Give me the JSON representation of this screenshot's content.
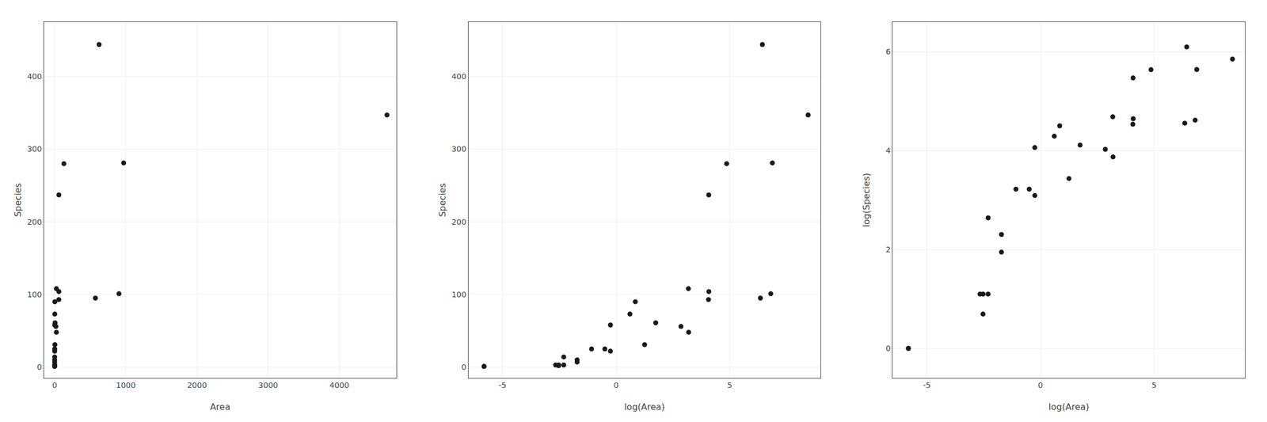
{
  "chart_data": [
    {
      "type": "scatter",
      "xlabel": "Area",
      "ylabel": "Species",
      "color": "#1a1a1a",
      "grid": true,
      "x": [
        58.27,
        0.78,
        2.33,
        0.18,
        1.84,
        0.78,
        3.51,
        0.08,
        0.1,
        0.34,
        0.08,
        0.07,
        0.003,
        0.003,
        17.35,
        0.18,
        0.1,
        0.61,
        5.72,
        572.33,
        24.08,
        4669.32,
        129.49,
        58.93,
        903.82,
        24.35,
        59.23,
        969.12,
        624.08
      ],
      "values": [
        93,
        58,
        90,
        10,
        73,
        22,
        31,
        2,
        3,
        25,
        3,
        3,
        1,
        1,
        56,
        7,
        14,
        25,
        61,
        95,
        108,
        347,
        280,
        237,
        101,
        48,
        104,
        281,
        444
      ],
      "xlim": [
        -150,
        4800
      ],
      "ylim": [
        -15,
        475
      ],
      "xticks": [
        0,
        1000,
        2000,
        3000,
        4000
      ],
      "yticks": [
        0,
        100,
        200,
        300,
        400
      ]
    },
    {
      "type": "scatter",
      "xlabel": "log(Area)",
      "ylabel": "Species",
      "color": "#1a1a1a",
      "grid": true,
      "x": [
        4.0651,
        -0.2485,
        0.8459,
        -1.7148,
        0.6098,
        -0.2485,
        1.2556,
        -2.5257,
        -2.3026,
        -1.0788,
        -2.5257,
        -2.6593,
        -5.8091,
        -5.8091,
        2.8536,
        -1.7148,
        -2.3026,
        -0.4943,
        1.744,
        6.3497,
        3.1814,
        8.4488,
        4.8636,
        4.0764,
        6.8066,
        3.1925,
        4.0814,
        6.8764,
        6.4363
      ],
      "values": [
        93,
        58,
        90,
        10,
        73,
        22,
        31,
        2,
        3,
        25,
        3,
        3,
        1,
        1,
        56,
        7,
        14,
        25,
        61,
        95,
        108,
        347,
        280,
        237,
        101,
        48,
        104,
        281,
        444
      ],
      "xlim": [
        -6.5,
        9.0
      ],
      "ylim": [
        -15,
        475
      ],
      "xticks": [
        -5,
        0,
        5
      ],
      "yticks": [
        0,
        100,
        200,
        300,
        400
      ]
    },
    {
      "type": "scatter",
      "xlabel": "log(Area)",
      "ylabel": "log(Species)",
      "color": "#1a1a1a",
      "grid": true,
      "x": [
        4.0651,
        -0.2485,
        0.8459,
        -1.7148,
        0.6098,
        -0.2485,
        1.2556,
        -2.5257,
        -2.3026,
        -1.0788,
        -2.5257,
        -2.6593,
        -5.8091,
        -5.8091,
        2.8536,
        -1.7148,
        -2.3026,
        -0.4943,
        1.744,
        6.3497,
        3.1814,
        8.4488,
        4.8636,
        4.0764,
        6.8066,
        3.1925,
        4.0814,
        6.8764,
        6.4363
      ],
      "values": [
        4.5326,
        4.0604,
        4.4998,
        2.3026,
        4.2905,
        3.091,
        3.434,
        0.6931,
        1.0986,
        3.2189,
        1.0986,
        1.0986,
        0,
        0,
        4.0254,
        1.9459,
        2.6391,
        3.2189,
        4.1109,
        4.5539,
        4.6821,
        5.8493,
        5.6348,
        5.4681,
        4.6151,
        3.8712,
        4.6444,
        5.6384,
        6.0958
      ],
      "xlim": [
        -6.5,
        9.0
      ],
      "ylim": [
        -0.6,
        6.6
      ],
      "xticks": [
        -5,
        0,
        5
      ],
      "yticks": [
        0,
        2,
        4,
        6
      ]
    }
  ]
}
